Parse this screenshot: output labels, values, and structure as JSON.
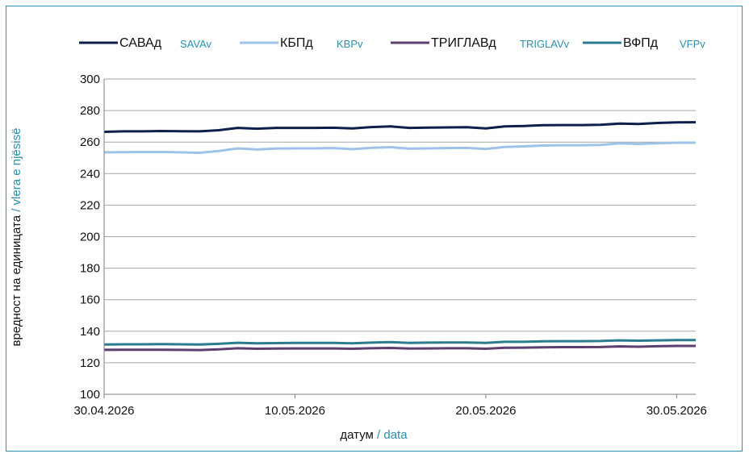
{
  "colors": {
    "sava": "#0d1f4a",
    "kbp": "#9ec2e8",
    "triglav": "#5c3f6e",
    "vfp": "#2b7c8c",
    "accent_teal": "#2a8fb0",
    "grid": "#a6a6a6",
    "axis": "#7f7f7f"
  },
  "chart_data": {
    "type": "line",
    "xlabel_primary": "датум",
    "xlabel_separator": " / ",
    "xlabel_secondary": "data",
    "ylabel_primary": "вредност на единицата",
    "ylabel_separator": " / ",
    "ylabel_secondary": "vlera e njësisë",
    "ylim": [
      100,
      300
    ],
    "yticks": [
      100,
      120,
      140,
      160,
      180,
      200,
      220,
      240,
      260,
      280,
      300
    ],
    "xlim": [
      "30.04.2026",
      "31.05.2026"
    ],
    "xticks": [
      "30.04.2026",
      "10.05.2026",
      "20.05.2026",
      "30.05.2026"
    ],
    "grid": "horizontal",
    "legend_position": "top",
    "x": [
      "30.04.2026",
      "01.05.2026",
      "02.05.2026",
      "03.05.2026",
      "04.05.2026",
      "05.05.2026",
      "06.05.2026",
      "07.05.2026",
      "08.05.2026",
      "09.05.2026",
      "10.05.2026",
      "11.05.2026",
      "12.05.2026",
      "13.05.2026",
      "14.05.2026",
      "15.05.2026",
      "16.05.2026",
      "17.05.2026",
      "18.05.2026",
      "19.05.2026",
      "20.05.2026",
      "21.05.2026",
      "22.05.2026",
      "23.05.2026",
      "24.05.2026",
      "25.05.2026",
      "26.05.2026",
      "27.05.2026",
      "28.05.2026",
      "29.05.2026",
      "30.05.2026",
      "31.05.2026"
    ],
    "series": [
      {
        "name": "САВАд",
        "name_secondary": "SAVAv",
        "color": "#0d1f4a",
        "values": [
          266.5,
          266.8,
          266.8,
          267.0,
          266.9,
          266.8,
          267.5,
          269.0,
          268.5,
          269.0,
          269.0,
          269.0,
          269.1,
          268.7,
          269.5,
          270.0,
          269.0,
          269.2,
          269.3,
          269.4,
          268.7,
          270.0,
          270.2,
          270.7,
          270.8,
          270.8,
          271.0,
          271.7,
          271.5,
          272.1,
          272.5,
          272.6
        ]
      },
      {
        "name": "КБПд",
        "name_secondary": "KBPv",
        "color": "#9ec2e8",
        "values": [
          253.5,
          253.6,
          253.7,
          253.7,
          253.5,
          253.2,
          254.3,
          256.0,
          255.3,
          255.9,
          256.0,
          256.0,
          256.2,
          255.5,
          256.3,
          256.8,
          255.8,
          256.0,
          256.2,
          256.3,
          255.6,
          256.9,
          257.3,
          257.8,
          258.0,
          258.0,
          258.2,
          259.2,
          258.8,
          259.3,
          259.6,
          259.6
        ]
      },
      {
        "name": "ТРИГЛАВд",
        "name_secondary": "TRIGLAVv",
        "color": "#5c3f6e",
        "values": [
          128.2,
          128.3,
          128.3,
          128.3,
          128.2,
          128.1,
          128.5,
          129.2,
          128.9,
          129.0,
          129.1,
          129.1,
          129.1,
          128.9,
          129.2,
          129.4,
          129.0,
          129.1,
          129.2,
          129.2,
          128.9,
          129.5,
          129.6,
          129.8,
          129.9,
          129.9,
          130.0,
          130.4,
          130.2,
          130.5,
          130.7,
          130.7
        ]
      },
      {
        "name": "ВФПд",
        "name_secondary": "VFPv",
        "color": "#2b7c8c",
        "values": [
          131.6,
          131.7,
          131.7,
          131.8,
          131.7,
          131.6,
          132.0,
          132.7,
          132.4,
          132.5,
          132.6,
          132.6,
          132.6,
          132.4,
          132.8,
          133.1,
          132.6,
          132.8,
          132.9,
          132.9,
          132.6,
          133.3,
          133.3,
          133.6,
          133.7,
          133.7,
          133.8,
          134.2,
          134.0,
          134.2,
          134.4,
          134.4
        ]
      }
    ]
  }
}
